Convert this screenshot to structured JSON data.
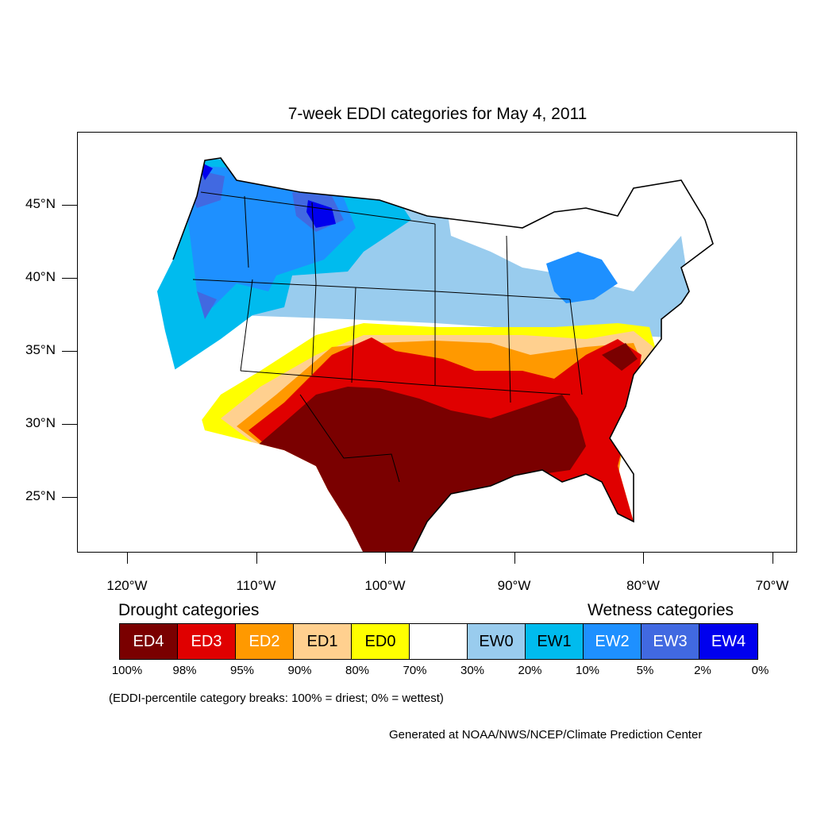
{
  "title": "7-week EDDI categories for May 4, 2011",
  "map": {
    "lat_ticks": [
      {
        "label": "45°N",
        "lat": 45
      },
      {
        "label": "40°N",
        "lat": 40
      },
      {
        "label": "35°N",
        "lat": 35
      },
      {
        "label": "30°N",
        "lat": 30
      },
      {
        "label": "25°N",
        "lat": 25
      }
    ],
    "lon_ticks": [
      {
        "label": "120°W",
        "lon": -120
      },
      {
        "label": "110°W",
        "lon": -110
      },
      {
        "label": "100°W",
        "lon": -100
      },
      {
        "label": "90°W",
        "lon": -90
      },
      {
        "label": "80°W",
        "lon": -80
      },
      {
        "label": "70°W",
        "lon": -70
      }
    ],
    "regions": [
      {
        "category": "EW1",
        "area": "Pacific Northwest and northern Rockies"
      },
      {
        "category": "EW3",
        "area": "Washington and Idaho cores"
      },
      {
        "category": "EW4",
        "area": "Montana and Washington centers"
      },
      {
        "category": "EW0",
        "area": "Northern Plains and Upper Midwest"
      },
      {
        "category": "EW2",
        "area": "Great Lakes (Michigan and Ohio)"
      },
      {
        "category": "ED0",
        "area": "Central Plains to Ohio Valley fringe"
      },
      {
        "category": "ED2",
        "area": "Kansas, Missouri and Tennessee"
      },
      {
        "category": "ED3",
        "area": "Oklahoma, Arkansas and Carolinas"
      },
      {
        "category": "ED4",
        "area": "Texas, New Mexico and the Gulf Coast"
      }
    ]
  },
  "legend": {
    "drought_heading": "Drought categories",
    "wetness_heading": "Wetness categories",
    "categories": [
      {
        "label": "ED4",
        "color": "#7a0000",
        "text_color": "#ffffff"
      },
      {
        "label": "ED3",
        "color": "#e00000",
        "text_color": "#ffffff"
      },
      {
        "label": "ED2",
        "color": "#ff9900",
        "text_color": "#ffffff"
      },
      {
        "label": "ED1",
        "color": "#ffd08f",
        "text_color": "#000000"
      },
      {
        "label": "ED0",
        "color": "#ffff00",
        "text_color": "#000000"
      },
      {
        "label": "",
        "color": "#ffffff",
        "text_color": "#000000"
      },
      {
        "label": "EW0",
        "color": "#99ccee",
        "text_color": "#000000"
      },
      {
        "label": "EW1",
        "color": "#00bbee",
        "text_color": "#000000"
      },
      {
        "label": "EW2",
        "color": "#1e90ff",
        "text_color": "#ffffff"
      },
      {
        "label": "EW3",
        "color": "#4169e1",
        "text_color": "#ffffff"
      },
      {
        "label": "EW4",
        "color": "#0000ee",
        "text_color": "#ffffff"
      }
    ],
    "breaks": [
      "100%",
      "98%",
      "95%",
      "90%",
      "80%",
      "70%",
      "30%",
      "20%",
      "10%",
      "5%",
      "2%",
      "0%"
    ]
  },
  "note": "(EDDI-percentile category breaks: 100% = driest; 0% = wettest)",
  "credit": "Generated at NOAA/NWS/NCEP/Climate Prediction Center"
}
